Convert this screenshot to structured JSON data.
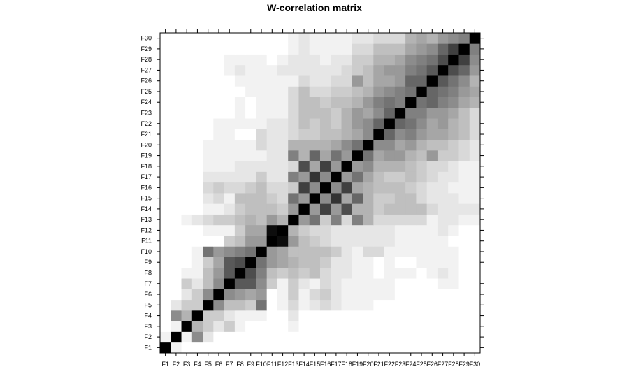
{
  "chart_data": {
    "type": "heatmap",
    "title": "W-correlation matrix",
    "xlabel": "",
    "ylabel": "",
    "x_labels": [
      "F1",
      "F2",
      "F3",
      "F4",
      "F5",
      "F6",
      "F7",
      "F8",
      "F9",
      "F10",
      "F11",
      "F12",
      "F13",
      "F14",
      "F15",
      "F16",
      "F17",
      "F18",
      "F19",
      "F20",
      "F21",
      "F22",
      "F23",
      "F24",
      "F25",
      "F26",
      "F27",
      "F28",
      "F29",
      "F30"
    ],
    "y_labels": [
      "F1",
      "F2",
      "F3",
      "F4",
      "F5",
      "F6",
      "F7",
      "F8",
      "F9",
      "F10",
      "F11",
      "F12",
      "F13",
      "F14",
      "F15",
      "F16",
      "F17",
      "F18",
      "F19",
      "F20",
      "F21",
      "F22",
      "F23",
      "F24",
      "F25",
      "F26",
      "F27",
      "F28",
      "F29",
      "F30"
    ],
    "color_scale": {
      "low": "#ffffff",
      "high": "#000000",
      "range": [
        0,
        1
      ]
    },
    "grid": false,
    "legend": "none",
    "matrix": [
      [
        1.0,
        0.05,
        0.0,
        0.0,
        0.0,
        0.0,
        0.0,
        0.0,
        0.0,
        0.0,
        0.0,
        0.0,
        0.0,
        0.0,
        0.0,
        0.0,
        0.0,
        0.0,
        0.0,
        0.0,
        0.0,
        0.0,
        0.0,
        0.0,
        0.0,
        0.0,
        0.0,
        0.0,
        0.0,
        0.0
      ],
      [
        0.05,
        1.0,
        0.05,
        0.45,
        0.1,
        0.0,
        0.0,
        0.0,
        0.0,
        0.0,
        0.0,
        0.0,
        0.0,
        0.0,
        0.0,
        0.0,
        0.0,
        0.0,
        0.0,
        0.0,
        0.0,
        0.0,
        0.0,
        0.0,
        0.0,
        0.0,
        0.0,
        0.0,
        0.0,
        0.0
      ],
      [
        0.0,
        0.05,
        1.0,
        0.3,
        0.2,
        0.1,
        0.2,
        0.05,
        0.0,
        0.0,
        0.0,
        0.0,
        0.05,
        0.0,
        0.0,
        0.0,
        0.0,
        0.0,
        0.0,
        0.0,
        0.0,
        0.0,
        0.0,
        0.0,
        0.0,
        0.0,
        0.0,
        0.0,
        0.0,
        0.0
      ],
      [
        0.0,
        0.45,
        0.3,
        1.0,
        0.2,
        0.2,
        0.1,
        0.05,
        0.05,
        0.05,
        0.0,
        0.0,
        0.1,
        0.0,
        0.0,
        0.0,
        0.0,
        0.0,
        0.0,
        0.0,
        0.0,
        0.0,
        0.0,
        0.0,
        0.0,
        0.0,
        0.0,
        0.0,
        0.0,
        0.0
      ],
      [
        0.0,
        0.1,
        0.2,
        0.2,
        1.0,
        0.45,
        0.25,
        0.25,
        0.2,
        0.55,
        0.0,
        0.05,
        0.15,
        0.05,
        0.1,
        0.15,
        0.1,
        0.05,
        0.05,
        0.05,
        0.0,
        0.0,
        0.0,
        0.0,
        0.0,
        0.0,
        0.0,
        0.0,
        0.0,
        0.0
      ],
      [
        0.0,
        0.0,
        0.1,
        0.2,
        0.45,
        1.0,
        0.45,
        0.4,
        0.35,
        0.4,
        0.0,
        0.05,
        0.2,
        0.05,
        0.15,
        0.2,
        0.1,
        0.05,
        0.05,
        0.05,
        0.05,
        0.05,
        0.0,
        0.0,
        0.0,
        0.0,
        0.0,
        0.0,
        0.0,
        0.0
      ],
      [
        0.0,
        0.0,
        0.2,
        0.1,
        0.25,
        0.45,
        1.0,
        0.65,
        0.65,
        0.45,
        0.2,
        0.05,
        0.2,
        0.1,
        0.05,
        0.15,
        0.1,
        0.05,
        0.05,
        0.05,
        0.05,
        0.05,
        0.0,
        0.0,
        0.0,
        0.0,
        0.05,
        0.05,
        0.0,
        0.0
      ],
      [
        0.0,
        0.0,
        0.05,
        0.05,
        0.25,
        0.4,
        0.65,
        1.0,
        0.7,
        0.5,
        0.25,
        0.2,
        0.25,
        0.2,
        0.25,
        0.15,
        0.1,
        0.1,
        0.05,
        0.05,
        0.0,
        0.05,
        0.05,
        0.05,
        0.0,
        0.05,
        0.1,
        0.05,
        0.0,
        0.0
      ],
      [
        0.0,
        0.0,
        0.0,
        0.05,
        0.2,
        0.35,
        0.65,
        0.7,
        1.0,
        0.55,
        0.4,
        0.35,
        0.3,
        0.25,
        0.25,
        0.2,
        0.1,
        0.1,
        0.05,
        0.05,
        0.0,
        0.05,
        0.0,
        0.0,
        0.05,
        0.05,
        0.05,
        0.05,
        0.0,
        0.0
      ],
      [
        0.0,
        0.0,
        0.0,
        0.05,
        0.55,
        0.4,
        0.45,
        0.5,
        0.55,
        1.0,
        0.4,
        0.35,
        0.25,
        0.25,
        0.25,
        0.25,
        0.2,
        0.1,
        0.05,
        0.15,
        0.15,
        0.05,
        0.05,
        0.05,
        0.05,
        0.05,
        0.05,
        0.05,
        0.0,
        0.0
      ],
      [
        0.0,
        0.0,
        0.0,
        0.0,
        0.0,
        0.0,
        0.2,
        0.25,
        0.4,
        0.4,
        1.0,
        0.95,
        0.4,
        0.25,
        0.2,
        0.15,
        0.1,
        0.1,
        0.1,
        0.1,
        0.1,
        0.1,
        0.05,
        0.05,
        0.05,
        0.05,
        0.05,
        0.0,
        0.0,
        0.0
      ],
      [
        0.0,
        0.0,
        0.0,
        0.0,
        0.05,
        0.05,
        0.05,
        0.2,
        0.35,
        0.35,
        0.95,
        1.0,
        0.3,
        0.2,
        0.15,
        0.15,
        0.1,
        0.1,
        0.1,
        0.1,
        0.1,
        0.1,
        0.05,
        0.05,
        0.05,
        0.05,
        0.1,
        0.05,
        0.0,
        0.0
      ],
      [
        0.0,
        0.0,
        0.05,
        0.1,
        0.15,
        0.2,
        0.2,
        0.25,
        0.3,
        0.25,
        0.4,
        0.3,
        1.0,
        0.4,
        0.55,
        0.2,
        0.5,
        0.15,
        0.5,
        0.3,
        0.15,
        0.15,
        0.15,
        0.15,
        0.15,
        0.05,
        0.1,
        0.1,
        0.05,
        0.05
      ],
      [
        0.0,
        0.0,
        0.0,
        0.0,
        0.05,
        0.05,
        0.1,
        0.2,
        0.25,
        0.25,
        0.25,
        0.2,
        0.4,
        1.0,
        0.4,
        0.75,
        0.4,
        0.7,
        0.3,
        0.3,
        0.2,
        0.25,
        0.25,
        0.25,
        0.25,
        0.15,
        0.1,
        0.1,
        0.1,
        0.1
      ],
      [
        0.0,
        0.0,
        0.0,
        0.0,
        0.1,
        0.15,
        0.05,
        0.25,
        0.25,
        0.25,
        0.2,
        0.15,
        0.55,
        0.4,
        1.0,
        0.45,
        0.8,
        0.35,
        0.6,
        0.3,
        0.2,
        0.2,
        0.25,
        0.25,
        0.15,
        0.1,
        0.1,
        0.1,
        0.05,
        0.05
      ],
      [
        0.0,
        0.0,
        0.0,
        0.0,
        0.15,
        0.2,
        0.15,
        0.15,
        0.2,
        0.25,
        0.15,
        0.15,
        0.2,
        0.75,
        0.45,
        1.0,
        0.45,
        0.75,
        0.35,
        0.3,
        0.25,
        0.25,
        0.25,
        0.2,
        0.15,
        0.1,
        0.1,
        0.05,
        0.05,
        0.05
      ],
      [
        0.0,
        0.0,
        0.0,
        0.0,
        0.1,
        0.1,
        0.1,
        0.1,
        0.1,
        0.2,
        0.1,
        0.1,
        0.5,
        0.4,
        0.8,
        0.45,
        1.0,
        0.4,
        0.55,
        0.35,
        0.25,
        0.2,
        0.2,
        0.25,
        0.2,
        0.15,
        0.1,
        0.1,
        0.05,
        0.05
      ],
      [
        0.0,
        0.0,
        0.0,
        0.0,
        0.05,
        0.05,
        0.05,
        0.1,
        0.1,
        0.1,
        0.1,
        0.1,
        0.15,
        0.7,
        0.35,
        0.75,
        0.4,
        1.0,
        0.4,
        0.45,
        0.3,
        0.3,
        0.3,
        0.25,
        0.2,
        0.15,
        0.15,
        0.1,
        0.05,
        0.05
      ],
      [
        0.0,
        0.0,
        0.0,
        0.0,
        0.05,
        0.05,
        0.05,
        0.05,
        0.05,
        0.05,
        0.1,
        0.1,
        0.5,
        0.3,
        0.6,
        0.35,
        0.55,
        0.4,
        1.0,
        0.55,
        0.35,
        0.4,
        0.4,
        0.3,
        0.25,
        0.4,
        0.2,
        0.2,
        0.15,
        0.1
      ],
      [
        0.0,
        0.0,
        0.0,
        0.0,
        0.05,
        0.05,
        0.05,
        0.05,
        0.05,
        0.15,
        0.1,
        0.1,
        0.3,
        0.3,
        0.3,
        0.3,
        0.35,
        0.45,
        0.55,
        1.0,
        0.45,
        0.45,
        0.35,
        0.4,
        0.3,
        0.25,
        0.25,
        0.2,
        0.15,
        0.1
      ],
      [
        0.0,
        0.0,
        0.0,
        0.0,
        0.0,
        0.05,
        0.05,
        0.0,
        0.0,
        0.15,
        0.1,
        0.1,
        0.15,
        0.2,
        0.2,
        0.25,
        0.25,
        0.3,
        0.35,
        0.45,
        1.0,
        0.6,
        0.45,
        0.5,
        0.4,
        0.35,
        0.35,
        0.3,
        0.25,
        0.15
      ],
      [
        0.0,
        0.0,
        0.0,
        0.0,
        0.0,
        0.05,
        0.05,
        0.05,
        0.05,
        0.05,
        0.1,
        0.1,
        0.15,
        0.25,
        0.2,
        0.25,
        0.2,
        0.3,
        0.4,
        0.45,
        0.6,
        1.0,
        0.6,
        0.55,
        0.45,
        0.35,
        0.4,
        0.3,
        0.25,
        0.15
      ],
      [
        0.0,
        0.0,
        0.0,
        0.0,
        0.0,
        0.0,
        0.0,
        0.05,
        0.0,
        0.05,
        0.05,
        0.05,
        0.15,
        0.25,
        0.25,
        0.25,
        0.2,
        0.3,
        0.4,
        0.35,
        0.45,
        0.6,
        1.0,
        0.5,
        0.5,
        0.4,
        0.4,
        0.35,
        0.25,
        0.15
      ],
      [
        0.0,
        0.0,
        0.0,
        0.0,
        0.0,
        0.0,
        0.0,
        0.05,
        0.0,
        0.05,
        0.05,
        0.05,
        0.15,
        0.25,
        0.25,
        0.2,
        0.25,
        0.25,
        0.3,
        0.4,
        0.5,
        0.55,
        0.5,
        1.0,
        0.55,
        0.6,
        0.5,
        0.45,
        0.35,
        0.3
      ],
      [
        0.0,
        0.0,
        0.0,
        0.0,
        0.0,
        0.0,
        0.0,
        0.0,
        0.05,
        0.05,
        0.05,
        0.05,
        0.15,
        0.25,
        0.15,
        0.15,
        0.2,
        0.2,
        0.25,
        0.3,
        0.4,
        0.45,
        0.5,
        0.55,
        1.0,
        0.6,
        0.55,
        0.5,
        0.4,
        0.35
      ],
      [
        0.0,
        0.0,
        0.0,
        0.0,
        0.0,
        0.0,
        0.0,
        0.05,
        0.05,
        0.05,
        0.05,
        0.05,
        0.05,
        0.15,
        0.1,
        0.1,
        0.15,
        0.15,
        0.4,
        0.25,
        0.35,
        0.35,
        0.4,
        0.6,
        0.6,
        1.0,
        0.65,
        0.55,
        0.45,
        0.3
      ],
      [
        0.0,
        0.0,
        0.0,
        0.0,
        0.0,
        0.0,
        0.05,
        0.1,
        0.05,
        0.05,
        0.05,
        0.1,
        0.1,
        0.1,
        0.1,
        0.1,
        0.1,
        0.15,
        0.2,
        0.25,
        0.35,
        0.4,
        0.4,
        0.5,
        0.55,
        0.65,
        1.0,
        0.7,
        0.6,
        0.4
      ],
      [
        0.0,
        0.0,
        0.0,
        0.0,
        0.0,
        0.0,
        0.05,
        0.05,
        0.05,
        0.05,
        0.0,
        0.05,
        0.1,
        0.1,
        0.1,
        0.05,
        0.1,
        0.1,
        0.2,
        0.2,
        0.3,
        0.3,
        0.35,
        0.45,
        0.5,
        0.55,
        0.7,
        1.0,
        0.75,
        0.45
      ],
      [
        0.0,
        0.0,
        0.0,
        0.0,
        0.0,
        0.0,
        0.0,
        0.0,
        0.0,
        0.0,
        0.0,
        0.0,
        0.05,
        0.1,
        0.05,
        0.05,
        0.05,
        0.05,
        0.15,
        0.15,
        0.25,
        0.25,
        0.25,
        0.35,
        0.4,
        0.45,
        0.6,
        0.75,
        1.0,
        0.5
      ],
      [
        0.0,
        0.0,
        0.0,
        0.0,
        0.0,
        0.0,
        0.0,
        0.0,
        0.0,
        0.0,
        0.0,
        0.0,
        0.05,
        0.1,
        0.05,
        0.05,
        0.05,
        0.05,
        0.1,
        0.1,
        0.15,
        0.15,
        0.15,
        0.3,
        0.35,
        0.3,
        0.4,
        0.45,
        0.5,
        1.0
      ]
    ]
  }
}
